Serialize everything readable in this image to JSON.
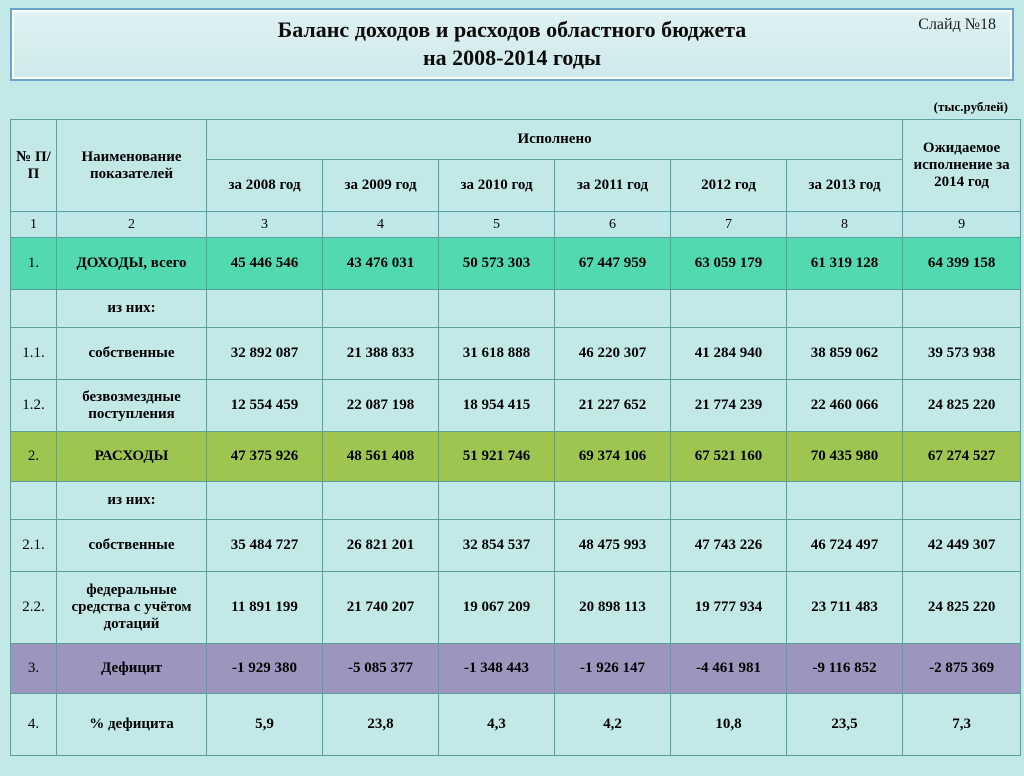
{
  "slide_number_label": "Слайд №18",
  "title_line1": "Баланс доходов и расходов областного бюджета",
  "title_line2": "на 2008-2014 годы",
  "unit_label": "(тыс.рублей)",
  "headers": {
    "col_num": "№ П/П",
    "col_name": "Наименование показателей",
    "executed": "Исполнено",
    "expected": "Ожидаемое исполнение за 2014 год",
    "y2008": "за 2008 год",
    "y2009": "за 2009 год",
    "y2010": "за 2010 год",
    "y2011": "за 2011 год",
    "y2012": "2012 год",
    "y2013": "за 2013 год"
  },
  "numrow": [
    "1",
    "2",
    "3",
    "4",
    "5",
    "6",
    "7",
    "8",
    "9"
  ],
  "rows": [
    {
      "n": "1.",
      "name": "ДОХОДЫ, всего",
      "vals": [
        "45 446 546",
        "43 476 031",
        "50 573 303",
        "67 447 959",
        "63 059 179",
        "61 319 128",
        "64 399 158"
      ],
      "cls": "bg-teal"
    },
    {
      "n": "",
      "name": "из них:",
      "vals": [
        "",
        "",
        "",
        "",
        "",
        "",
        ""
      ],
      "cls": "bg-plain sub"
    },
    {
      "n": "1.1.",
      "name": "собственные",
      "vals": [
        "32 892 087",
        "21 388 833",
        "31 618 888",
        "46 220 307",
        "41 284 940",
        "38 859 062",
        "39 573 938"
      ],
      "cls": "bg-plain"
    },
    {
      "n": "1.2.",
      "name": "безвозмездные поступления",
      "vals": [
        "12 554 459",
        "22 087 198",
        "18 954 415",
        "21 227 652",
        "21 774 239",
        "22 460 066",
        "24 825 220"
      ],
      "cls": "bg-plain"
    },
    {
      "n": "2.",
      "name": "РАСХОДЫ",
      "vals": [
        "47 375 926",
        "48 561 408",
        "51 921 746",
        "69 374 106",
        "67 521 160",
        "70 435 980",
        "67 274 527"
      ],
      "cls": "bg-olive small"
    },
    {
      "n": "",
      "name": "из них:",
      "vals": [
        "",
        "",
        "",
        "",
        "",
        "",
        ""
      ],
      "cls": "bg-plain sub"
    },
    {
      "n": "2.1.",
      "name": "собственные",
      "vals": [
        "35 484 727",
        "26 821 201",
        "32 854 537",
        "48 475 993",
        "47 743 226",
        "46 724 497",
        "42 449 307"
      ],
      "cls": "bg-plain"
    },
    {
      "n": "2.2.",
      "name": "федеральные средства с учётом дотаций",
      "vals": [
        "11 891 199",
        "21 740 207",
        "19 067 209",
        "20 898 113",
        "19 777 934",
        "23 711 483",
        "24 825 220"
      ],
      "cls": "bg-plain tall"
    },
    {
      "n": "3.",
      "name": "Дефицит",
      "vals": [
        "-1 929 380",
        "-5 085 377",
        "-1 348 443",
        "-1 926 147",
        "-4 461 981",
        "-9 116 852",
        "-2 875 369"
      ],
      "cls": "bg-violet small"
    },
    {
      "n": "4.",
      "name": "% дефицита",
      "vals": [
        "5,9",
        "23,8",
        "4,3",
        "4,2",
        "10,8",
        "23,5",
        "7,3"
      ],
      "cls": "bg-plain last"
    }
  ],
  "colors": {
    "page_bg": "#c3e8e8",
    "border": "#5aa0a0",
    "title_border": "#6aa4c8",
    "row_teal": "#53d9b0",
    "row_olive": "#9dc550",
    "row_violet": "#9c95bd"
  },
  "fonts": {
    "title_pt": 22,
    "header_pt": 15,
    "body_pt": 15,
    "unit_pt": 13
  }
}
